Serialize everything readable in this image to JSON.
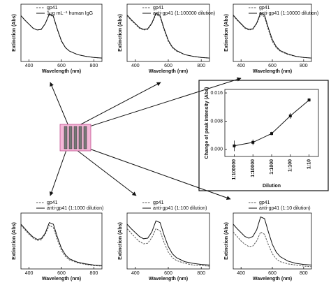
{
  "chart_data": [
    {
      "type": "line",
      "xlabel": "Wavelength (nm)",
      "ylabel": "Extinction (Abs)",
      "x": [
        350,
        375,
        400,
        425,
        450,
        475,
        500,
        525,
        550,
        575,
        600,
        625,
        650,
        700,
        750,
        800,
        850
      ],
      "xlim": [
        350,
        850
      ],
      "xticks": [
        400,
        600,
        800
      ],
      "ylim": [
        0,
        1
      ],
      "series": [
        {
          "name": "gp41",
          "color": "#555555",
          "linestyle": "dashed",
          "values": [
            0.8,
            0.72,
            0.65,
            0.58,
            0.55,
            0.56,
            0.66,
            0.82,
            0.78,
            0.55,
            0.35,
            0.24,
            0.18,
            0.12,
            0.09,
            0.07,
            0.06
          ]
        },
        {
          "name": "1μg mL⁻¹ human IgG",
          "color": "#111111",
          "linestyle": "solid",
          "values": [
            0.8,
            0.72,
            0.65,
            0.58,
            0.55,
            0.56,
            0.66,
            0.83,
            0.79,
            0.56,
            0.36,
            0.24,
            0.18,
            0.12,
            0.09,
            0.07,
            0.06
          ]
        }
      ]
    },
    {
      "type": "line",
      "xlabel": "Wavelength (nm)",
      "ylabel": "Extinction (Abs)",
      "x": [
        350,
        375,
        400,
        425,
        450,
        475,
        500,
        525,
        550,
        575,
        600,
        625,
        650,
        700,
        750,
        800,
        850
      ],
      "xlim": [
        350,
        850
      ],
      "xticks": [
        400,
        600,
        800
      ],
      "ylim": [
        0,
        1
      ],
      "series": [
        {
          "name": "gp41",
          "color": "#555555",
          "linestyle": "dashed",
          "values": [
            0.8,
            0.72,
            0.65,
            0.58,
            0.55,
            0.56,
            0.66,
            0.82,
            0.78,
            0.55,
            0.35,
            0.24,
            0.18,
            0.12,
            0.09,
            0.07,
            0.06
          ]
        },
        {
          "name": "anti-gp41 (1:100000 dilution)",
          "color": "#111111",
          "linestyle": "solid",
          "values": [
            0.81,
            0.73,
            0.66,
            0.59,
            0.56,
            0.57,
            0.67,
            0.84,
            0.8,
            0.57,
            0.37,
            0.25,
            0.19,
            0.12,
            0.09,
            0.07,
            0.06
          ]
        }
      ]
    },
    {
      "type": "line",
      "xlabel": "Wavelength (nm)",
      "ylabel": "Extinction (Abs)",
      "x": [
        350,
        375,
        400,
        425,
        450,
        475,
        500,
        525,
        550,
        575,
        600,
        625,
        650,
        700,
        750,
        800,
        850
      ],
      "xlim": [
        350,
        850
      ],
      "xticks": [
        400,
        600,
        800
      ],
      "ylim": [
        0,
        1
      ],
      "series": [
        {
          "name": "gp41",
          "color": "#555555",
          "linestyle": "dashed",
          "values": [
            0.8,
            0.72,
            0.65,
            0.58,
            0.55,
            0.56,
            0.66,
            0.82,
            0.78,
            0.55,
            0.35,
            0.24,
            0.18,
            0.12,
            0.09,
            0.07,
            0.06
          ]
        },
        {
          "name": "anti-gp41 (1:10000 dilution)",
          "color": "#111111",
          "linestyle": "solid",
          "values": [
            0.81,
            0.73,
            0.66,
            0.59,
            0.56,
            0.57,
            0.67,
            0.85,
            0.81,
            0.58,
            0.38,
            0.26,
            0.19,
            0.13,
            0.09,
            0.07,
            0.06
          ]
        }
      ]
    },
    {
      "type": "line",
      "xlabel": "Wavelength (nm)",
      "ylabel": "Extinction (Abs)",
      "x": [
        350,
        375,
        400,
        425,
        450,
        475,
        500,
        525,
        550,
        575,
        600,
        625,
        650,
        700,
        750,
        800,
        850
      ],
      "xlim": [
        350,
        850
      ],
      "xticks": [
        400,
        600,
        800
      ],
      "ylim": [
        0,
        1
      ],
      "series": [
        {
          "name": "gp41",
          "color": "#555555",
          "linestyle": "dashed",
          "values": [
            0.78,
            0.7,
            0.62,
            0.55,
            0.51,
            0.52,
            0.62,
            0.78,
            0.74,
            0.52,
            0.33,
            0.22,
            0.16,
            0.11,
            0.08,
            0.06,
            0.05
          ]
        },
        {
          "name": "anti-gp41 (1:1000 dilution)",
          "color": "#111111",
          "linestyle": "solid",
          "values": [
            0.8,
            0.72,
            0.64,
            0.57,
            0.53,
            0.54,
            0.64,
            0.83,
            0.8,
            0.57,
            0.37,
            0.25,
            0.18,
            0.12,
            0.09,
            0.07,
            0.06
          ]
        }
      ]
    },
    {
      "type": "line",
      "xlabel": "Wavelength (nm)",
      "ylabel": "Extinction (Abs)",
      "x": [
        350,
        375,
        400,
        425,
        450,
        475,
        500,
        525,
        550,
        575,
        600,
        625,
        650,
        700,
        750,
        800,
        850
      ],
      "xlim": [
        350,
        850
      ],
      "xticks": [
        400,
        600,
        800
      ],
      "ylim": [
        0,
        1
      ],
      "series": [
        {
          "name": "gp41",
          "color": "#555555",
          "linestyle": "dashed",
          "values": [
            0.72,
            0.64,
            0.56,
            0.49,
            0.45,
            0.46,
            0.56,
            0.72,
            0.68,
            0.47,
            0.3,
            0.2,
            0.15,
            0.1,
            0.07,
            0.06,
            0.05
          ]
        },
        {
          "name": "anti-gp41 (1:100 dilution)",
          "color": "#111111",
          "linestyle": "solid",
          "values": [
            0.8,
            0.72,
            0.65,
            0.58,
            0.54,
            0.55,
            0.66,
            0.86,
            0.83,
            0.6,
            0.4,
            0.27,
            0.2,
            0.13,
            0.1,
            0.08,
            0.07
          ]
        }
      ]
    },
    {
      "type": "line",
      "xlabel": "Wavelength (nm)",
      "ylabel": "Extinction (Abs)",
      "x": [
        350,
        375,
        400,
        425,
        450,
        475,
        500,
        525,
        550,
        575,
        600,
        625,
        650,
        700,
        750,
        800,
        850
      ],
      "xlim": [
        350,
        850
      ],
      "xticks": [
        400,
        600,
        800
      ],
      "ylim": [
        0,
        1
      ],
      "series": [
        {
          "name": "gp41",
          "color": "#555555",
          "linestyle": "dashed",
          "values": [
            0.66,
            0.58,
            0.5,
            0.44,
            0.4,
            0.41,
            0.5,
            0.66,
            0.62,
            0.43,
            0.27,
            0.18,
            0.13,
            0.09,
            0.07,
            0.05,
            0.04
          ]
        },
        {
          "name": "anti-gp41 (1:10 dilution)",
          "color": "#111111",
          "linestyle": "solid",
          "values": [
            0.8,
            0.72,
            0.65,
            0.58,
            0.55,
            0.58,
            0.7,
            0.93,
            0.9,
            0.66,
            0.44,
            0.3,
            0.22,
            0.14,
            0.1,
            0.08,
            0.07
          ]
        }
      ]
    },
    {
      "type": "line",
      "xlabel": "Dilution",
      "ylabel": "Change of peak intensity (Abs)",
      "categories": [
        "1:100000",
        "1:10000",
        "1:1000",
        "1:100",
        "1:10"
      ],
      "values": [
        0.001,
        0.002,
        0.0045,
        0.0095,
        0.014
      ],
      "errors": [
        0.0015,
        0.0008,
        0.0005,
        0.0008,
        0.0005
      ],
      "color": "#111111",
      "ylim": [
        -0.002,
        0.017
      ],
      "yticks": [
        {
          "value": 0,
          "label": "0.000"
        },
        {
          "value": 0.008,
          "label": "0.008"
        },
        {
          "value": 0.016,
          "label": "0.016"
        }
      ]
    }
  ]
}
